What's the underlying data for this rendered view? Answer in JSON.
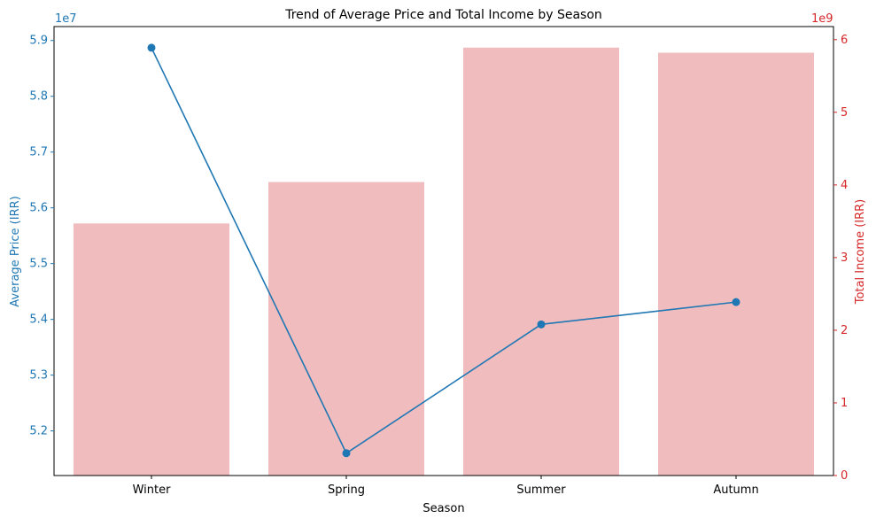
{
  "chart_data": {
    "type": "bar",
    "title": "Trend of Average Price and Total Income by Season",
    "xlabel": "Season",
    "categories": [
      "Winter",
      "Spring",
      "Summer",
      "Autumn"
    ],
    "left_axis": {
      "label": "Average Price (IRR)",
      "offset_label": "1e7",
      "ylim": [
        5.12,
        5.925
      ],
      "ticks": [
        5.2,
        5.3,
        5.4,
        5.5,
        5.6,
        5.7,
        5.8,
        5.9
      ],
      "tick_labels": [
        "5.2",
        "5.3",
        "5.4",
        "5.5",
        "5.6",
        "5.7",
        "5.8",
        "5.9"
      ],
      "color": "#1f77b4"
    },
    "right_axis": {
      "label": "Total Income (IRR)",
      "offset_label": "1e9",
      "ylim": [
        0,
        6.18
      ],
      "ticks": [
        0,
        1,
        2,
        3,
        4,
        5,
        6
      ],
      "tick_labels": [
        "0",
        "1",
        "2",
        "3",
        "4",
        "5",
        "6"
      ],
      "color": "#d62728"
    },
    "series": [
      {
        "type": "bar",
        "axis": "right",
        "unit_scale": "1e9",
        "values": [
          3.47,
          4.04,
          5.89,
          5.82
        ],
        "color": "#f0bcbe"
      },
      {
        "type": "line",
        "axis": "left",
        "unit_scale": "1e7",
        "values": [
          5.887,
          5.16,
          5.391,
          5.431
        ],
        "color": "#1f77b4",
        "marker": "circle"
      }
    ],
    "grid": false,
    "legend": "none"
  }
}
